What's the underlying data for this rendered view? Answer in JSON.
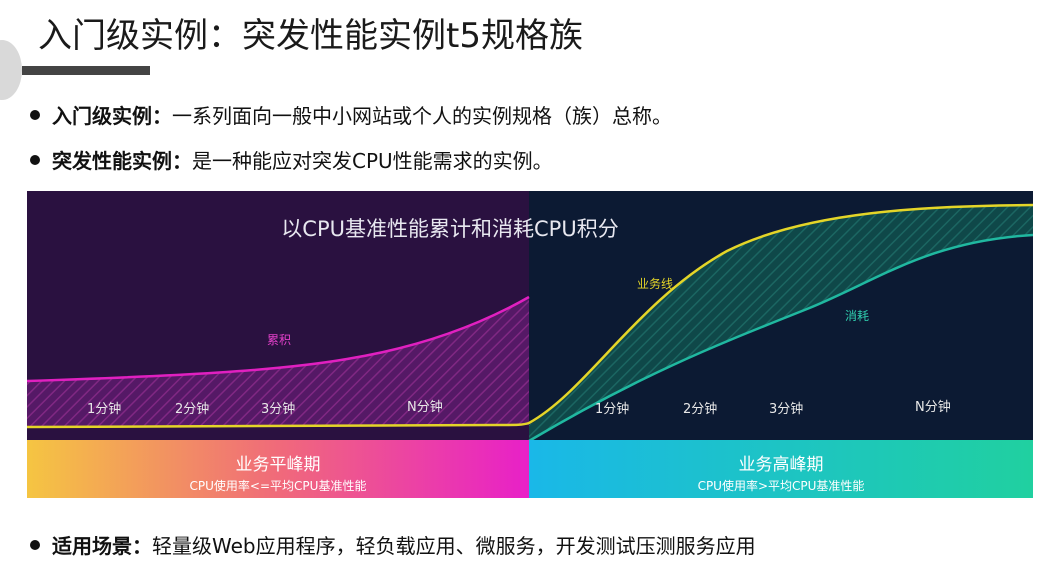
{
  "title": "入门级实例：突发性能实例t5规格族",
  "bullets": [
    {
      "term": "入门级实例：",
      "text": "一系列面向一般中小网站或个人的实例规格（族）总称。"
    },
    {
      "term": "突发性能实例：",
      "text": "是一种能应对突发CPU性能需求的实例。"
    }
  ],
  "figure": {
    "title": "以CPU基准性能累计和消耗CPU积分",
    "labels": {
      "accumulate": "累积",
      "business_line": "业务线",
      "consume": "消耗"
    },
    "left_ticks": [
      "1分钟",
      "2分钟",
      "3分钟",
      "N分钟"
    ],
    "right_ticks": [
      "1分钟",
      "2分钟",
      "3分钟",
      "N分钟"
    ],
    "off_peak": {
      "title": "业务平峰期",
      "subtitle": "CPU使用率<=平均CPU基准性能"
    },
    "peak": {
      "title": "业务高峰期",
      "subtitle": "CPU使用率>平均CPU基准性能"
    },
    "colors": {
      "left_bg": "#2a1140",
      "right_bg": "#0c1a33",
      "accumulate": "#e020c0",
      "business_line": "#e4d528",
      "consume": "#20b8a0"
    }
  },
  "use_case": {
    "term": "适用场景：",
    "text": "轻量级Web应用程序，轻负载应用、微服务，开发测试压测服务应用"
  }
}
